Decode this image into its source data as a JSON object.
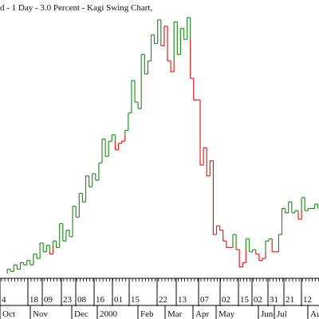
{
  "chart_data": {
    "type": "line",
    "subtype": "kagi",
    "title": "d - 1 Day - 3.0 Percent - Kagi Swing Chart,",
    "xlabel": "",
    "ylabel": "",
    "grid": false,
    "colors": {
      "yang": "#2e8b2e",
      "yin": "#e02020",
      "axis": "#000000",
      "text": "#111111"
    },
    "levels": [
      0,
      2,
      1,
      4,
      2,
      5,
      4,
      6,
      4,
      9,
      7,
      14,
      10,
      13,
      9,
      15,
      12,
      23,
      15,
      20,
      17,
      31,
      26,
      37,
      33,
      45,
      40,
      46,
      43,
      51,
      62,
      54,
      61,
      64,
      57,
      60,
      61,
      66,
      74,
      89,
      79,
      76,
      101,
      92,
      98,
      110,
      106,
      117,
      105,
      114,
      98,
      93,
      116,
      101,
      113,
      108,
      118,
      90,
      80,
      80,
      50,
      58,
      45,
      52,
      18,
      22,
      20,
      15,
      12,
      12,
      18,
      11,
      3,
      5,
      16,
      10,
      11,
      9,
      6,
      7,
      15,
      16,
      10,
      10,
      18,
      30,
      28,
      33,
      28,
      29,
      25,
      35,
      29,
      30,
      30,
      32,
      30
    ],
    "first_tick_labels": [
      "4"
    ],
    "day_ticks": [
      "18",
      "09",
      "23",
      "08",
      "16",
      "01",
      "15",
      "22",
      "13",
      "07",
      "02",
      "15",
      "02",
      "31",
      "21",
      "12",
      "31"
    ],
    "month_labels": [
      "Oct",
      "Nov",
      "Dec",
      "2000",
      "Feb",
      "Mar",
      "Apr",
      "May",
      "Jun",
      "Jul",
      "Au"
    ],
    "extra_ticks": [
      "15"
    ]
  }
}
